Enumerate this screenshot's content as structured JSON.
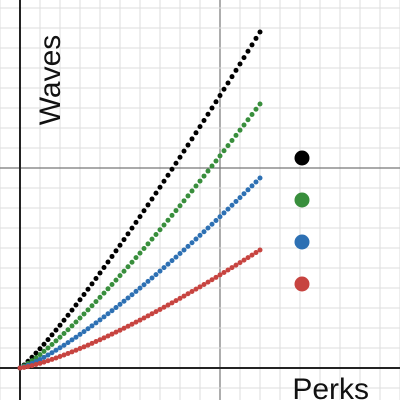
{
  "chart_data": {
    "type": "scatter",
    "xlabel": "Perks",
    "ylabel": "Waves",
    "xlim": [
      -0.5,
      9.5
    ],
    "ylim": [
      -0.8,
      9.2
    ],
    "grid": true,
    "series": [
      {
        "color": "#000000",
        "x_range": [
          0,
          6
        ],
        "y_end": 8.4,
        "exponent": 1.15
      },
      {
        "color": "#388e3c",
        "x_range": [
          0,
          6
        ],
        "y_end": 6.6,
        "exponent": 1.2
      },
      {
        "color": "#2d70b3",
        "x_range": [
          0,
          6
        ],
        "y_end": 4.75,
        "exponent": 1.25
      },
      {
        "color": "#c74440",
        "x_range": [
          0,
          6
        ],
        "y_end": 2.95,
        "exponent": 1.3
      }
    ],
    "legend": {
      "placement": "right",
      "markers": [
        "#000000",
        "#388e3c",
        "#2d70b3",
        "#c74440"
      ]
    }
  }
}
